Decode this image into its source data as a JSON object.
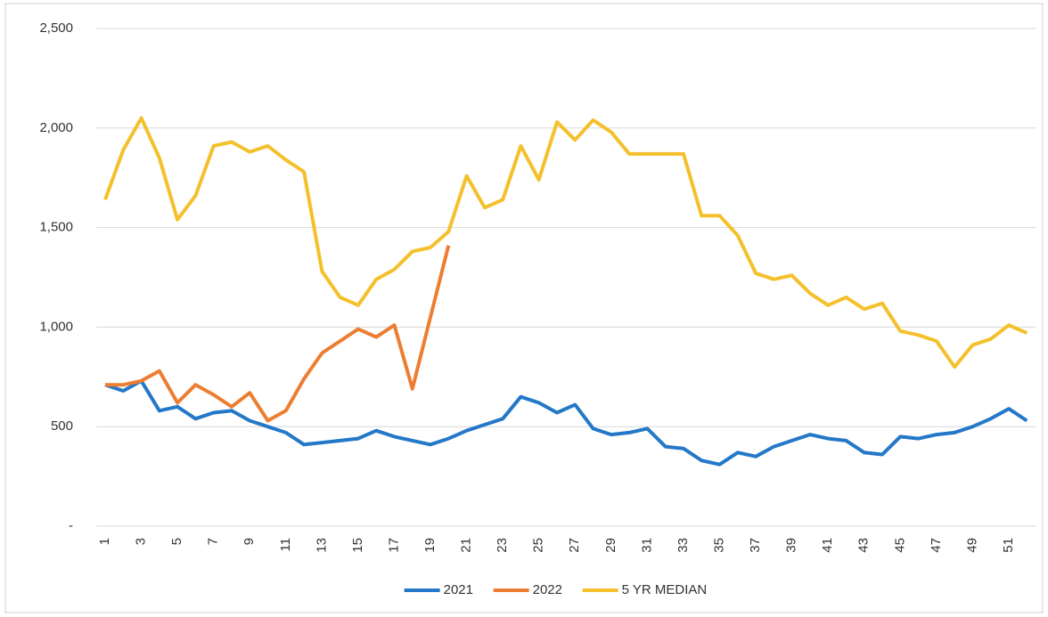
{
  "chart_data": {
    "type": "line",
    "categories": [
      1,
      null,
      3,
      null,
      5,
      null,
      7,
      null,
      9,
      null,
      11,
      null,
      13,
      null,
      15,
      null,
      17,
      null,
      19,
      null,
      21,
      null,
      23,
      null,
      25,
      null,
      27,
      null,
      29,
      null,
      31,
      null,
      33,
      null,
      35,
      null,
      37,
      null,
      39,
      null,
      41,
      null,
      43,
      null,
      45,
      null,
      47,
      null,
      49,
      null,
      51,
      null
    ],
    "series": [
      {
        "name": "2021",
        "color": "#2478c8",
        "values": [
          710,
          680,
          730,
          580,
          600,
          540,
          570,
          580,
          530,
          500,
          470,
          410,
          420,
          430,
          440,
          480,
          450,
          430,
          410,
          440,
          480,
          510,
          540,
          650,
          620,
          570,
          610,
          490,
          460,
          470,
          490,
          400,
          390,
          330,
          310,
          370,
          350,
          400,
          430,
          460,
          440,
          430,
          370,
          360,
          450,
          440,
          460,
          470,
          500,
          540,
          590,
          530
        ]
      },
      {
        "name": "2022",
        "color": "#ed7d31",
        "values": [
          710,
          710,
          730,
          780,
          620,
          710,
          660,
          600,
          670,
          530,
          580,
          740,
          870,
          930,
          990,
          950,
          1010,
          690,
          1050,
          1410,
          null,
          null,
          null,
          null,
          null,
          null,
          null,
          null,
          null,
          null,
          null,
          null,
          null,
          null,
          null,
          null,
          null,
          null,
          null,
          null,
          null,
          null,
          null,
          null,
          null,
          null,
          null,
          null,
          null,
          null,
          null,
          null
        ]
      },
      {
        "name": "5 YR MEDIAN",
        "color": "#f4c02c",
        "values": [
          1640,
          1890,
          2050,
          1850,
          1540,
          1660,
          1910,
          1930,
          1880,
          1910,
          1840,
          1780,
          1280,
          1150,
          1110,
          1240,
          1290,
          1380,
          1400,
          1480,
          1760,
          1600,
          1640,
          1910,
          1740,
          2030,
          1940,
          2040,
          1980,
          1870,
          1870,
          1870,
          1870,
          1560,
          1560,
          1460,
          1270,
          1240,
          1260,
          1170,
          1110,
          1150,
          1090,
          1120,
          980,
          960,
          930,
          800,
          910,
          940,
          1010,
          970
        ]
      }
    ],
    "ylim": [
      0,
      2500
    ],
    "yticks": [
      {
        "value": 0,
        "label": "-"
      },
      500,
      {
        "value": 1000,
        "label": "1,000"
      },
      {
        "value": 1500,
        "label": "1,500"
      },
      {
        "value": 2000,
        "label": "2,000"
      },
      {
        "value": 2500,
        "label": "2,500"
      }
    ],
    "grid": true,
    "legend": "bottom"
  }
}
